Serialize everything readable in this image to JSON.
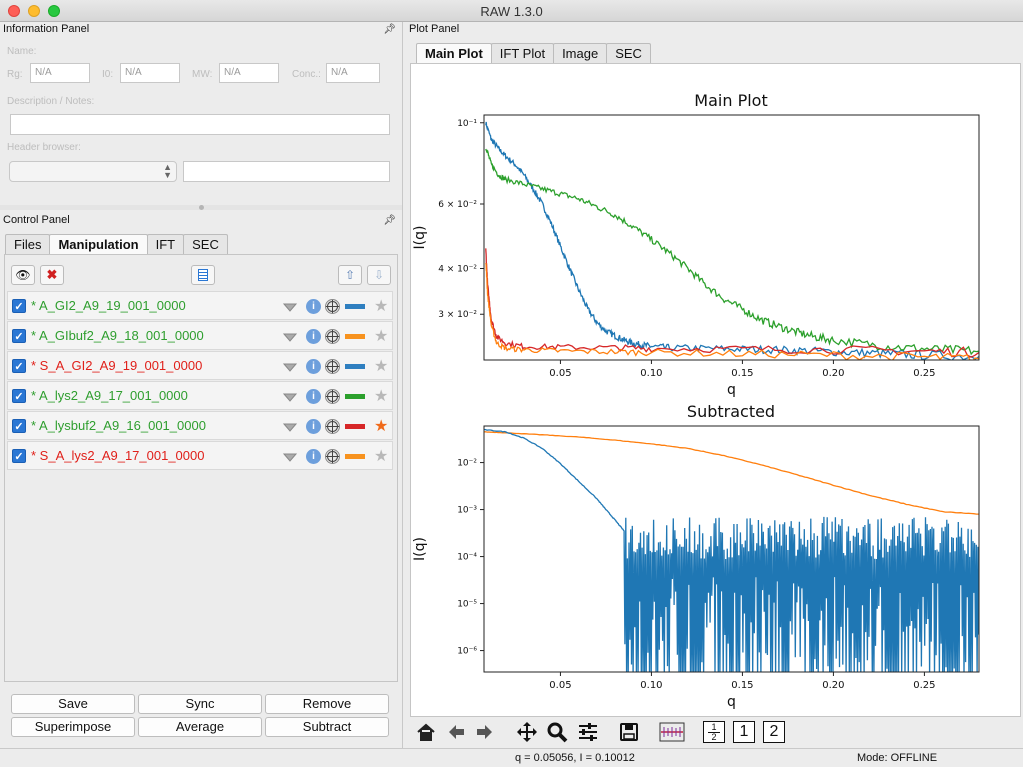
{
  "window": {
    "title": "RAW 1.3.0"
  },
  "info_panel": {
    "header": "Information Panel",
    "name_label": "Name:",
    "rg_label": "Rg:",
    "rg_value": "N/A",
    "i0_label": "I0:",
    "i0_value": "N/A",
    "mw_label": "MW:",
    "mw_value": "N/A",
    "conc_label": "Conc.:",
    "conc_value": "N/A",
    "notes_label": "Description / Notes:",
    "header_browser_label": "Header browser:"
  },
  "control_panel": {
    "header": "Control Panel",
    "tabs": [
      "Files",
      "Manipulation",
      "IFT",
      "SEC"
    ],
    "active_tab": "Manipulation",
    "items": [
      {
        "label": "* A_GI2_A9_19_001_0000",
        "text_color": "#2e9e2e",
        "swatch": "#2f7fc0",
        "starred": false
      },
      {
        "label": "* A_GIbuf2_A9_18_001_0000",
        "text_color": "#2e9e2e",
        "swatch": "#f7921e",
        "starred": false
      },
      {
        "label": "* S_A_GI2_A9_19_001_0000",
        "text_color": "#e0201a",
        "swatch": "#2f7fc0",
        "starred": false
      },
      {
        "label": "* A_lys2_A9_17_001_0000",
        "text_color": "#2e9e2e",
        "swatch": "#2ca02c",
        "starred": false
      },
      {
        "label": "* A_lysbuf2_A9_16_001_0000",
        "text_color": "#2e9e2e",
        "swatch": "#d62728",
        "starred": true
      },
      {
        "label": "* S_A_lys2_A9_17_001_0000",
        "text_color": "#e0201a",
        "swatch": "#f7921e",
        "starred": false
      }
    ],
    "buttons": {
      "save": "Save",
      "sync": "Sync",
      "remove": "Remove",
      "superimpose": "Superimpose",
      "average": "Average",
      "subtract": "Subtract"
    }
  },
  "plot_panel": {
    "header": "Plot Panel",
    "tabs": [
      "Main Plot",
      "IFT Plot",
      "Image",
      "SEC"
    ],
    "active_tab": "Main Plot",
    "zoom_buttons": [
      "1",
      "2"
    ],
    "zoom_split": {
      "num": "1",
      "den": "2"
    }
  },
  "status": {
    "readout": "q = 0.05056, I = 0.10012",
    "mode": "Mode: OFFLINE"
  },
  "chart_data": [
    {
      "type": "line",
      "title": "Main Plot",
      "xlabel": "q",
      "ylabel": "I(q)",
      "xlim": [
        0.008,
        0.28
      ],
      "ylim": [
        0.0225,
        0.105
      ],
      "yscale": "log",
      "xticks": [
        0.05,
        0.1,
        0.15,
        0.2,
        0.25
      ],
      "xtick_labels": [
        "0.05",
        "0.10",
        "0.15",
        "0.20",
        "0.25"
      ],
      "yticks": [
        0.03,
        0.04,
        0.06,
        0.1
      ],
      "ytick_labels": [
        "3 × 10⁻²",
        "4 × 10⁻²",
        "6 × 10⁻²",
        "10⁻¹"
      ],
      "series": [
        {
          "color": "#1f77b4",
          "x": [
            0.009,
            0.012,
            0.016,
            0.02,
            0.025,
            0.03,
            0.035,
            0.04,
            0.045,
            0.05,
            0.055,
            0.06,
            0.065,
            0.07,
            0.075,
            0.08,
            0.085,
            0.09,
            0.095,
            0.1,
            0.11,
            0.13,
            0.15,
            0.17,
            0.19,
            0.21,
            0.23,
            0.25,
            0.28
          ],
          "y": [
            0.1,
            0.09,
            0.085,
            0.081,
            0.077,
            0.072,
            0.066,
            0.06,
            0.053,
            0.046,
            0.04,
            0.035,
            0.031,
            0.0285,
            0.027,
            0.0262,
            0.0255,
            0.025,
            0.0247,
            0.0245,
            0.0243,
            0.0242,
            0.0241,
            0.024,
            0.0238,
            0.0236,
            0.0234,
            0.0232,
            0.023
          ]
        },
        {
          "color": "#2ca02c",
          "x": [
            0.009,
            0.012,
            0.016,
            0.02,
            0.03,
            0.04,
            0.05,
            0.06,
            0.07,
            0.08,
            0.09,
            0.1,
            0.11,
            0.12,
            0.13,
            0.14,
            0.15,
            0.16,
            0.17,
            0.18,
            0.19,
            0.2,
            0.22,
            0.24,
            0.26,
            0.28
          ],
          "y": [
            0.086,
            0.077,
            0.072,
            0.07,
            0.068,
            0.066,
            0.064,
            0.062,
            0.059,
            0.056,
            0.052,
            0.048,
            0.044,
            0.04,
            0.036,
            0.033,
            0.031,
            0.029,
            0.0278,
            0.0268,
            0.026,
            0.0255,
            0.0248,
            0.0243,
            0.024,
            0.0238
          ]
        },
        {
          "color": "#d62728",
          "x": [
            0.009,
            0.01,
            0.012,
            0.015,
            0.02,
            0.03,
            0.05,
            0.08,
            0.1,
            0.15,
            0.2,
            0.25,
            0.28
          ],
          "y": [
            0.045,
            0.036,
            0.029,
            0.026,
            0.025,
            0.0245,
            0.0244,
            0.0243,
            0.0242,
            0.0241,
            0.024,
            0.0238,
            0.0236
          ]
        },
        {
          "color": "#ff7f0e",
          "x": [
            0.009,
            0.01,
            0.012,
            0.015,
            0.02,
            0.03,
            0.05,
            0.08,
            0.1,
            0.15,
            0.2,
            0.25,
            0.28
          ],
          "y": [
            0.042,
            0.034,
            0.028,
            0.025,
            0.0242,
            0.024,
            0.0238,
            0.0237,
            0.0236,
            0.0234,
            0.0232,
            0.0229,
            0.0227
          ]
        }
      ]
    },
    {
      "type": "line",
      "title": "Subtracted",
      "xlabel": "q",
      "ylabel": "I(q)",
      "xlim": [
        0.008,
        0.28
      ],
      "ylim": [
        3.5e-07,
        0.06
      ],
      "yscale": "log",
      "xticks": [
        0.05,
        0.1,
        0.15,
        0.2,
        0.25
      ],
      "xtick_labels": [
        "0.05",
        "0.10",
        "0.15",
        "0.20",
        "0.25"
      ],
      "yticks": [
        1e-06,
        1e-05,
        0.0001,
        0.001,
        0.01
      ],
      "ytick_labels": [
        "10⁻⁶",
        "10⁻⁵",
        "10⁻⁴",
        "10⁻³",
        "10⁻²"
      ],
      "series": [
        {
          "color": "#ff7f0e",
          "x": [
            0.008,
            0.02,
            0.04,
            0.06,
            0.08,
            0.1,
            0.12,
            0.14,
            0.16,
            0.18,
            0.2,
            0.22,
            0.24,
            0.26,
            0.28
          ],
          "y": [
            0.045,
            0.043,
            0.039,
            0.035,
            0.03,
            0.025,
            0.02,
            0.014,
            0.009,
            0.0055,
            0.0033,
            0.002,
            0.0013,
            0.0009,
            0.0008
          ]
        },
        {
          "color": "#1f77b4",
          "x": [
            0.008,
            0.02,
            0.03,
            0.04,
            0.05,
            0.06,
            0.07,
            0.075,
            0.08,
            0.085
          ],
          "y": [
            0.05,
            0.045,
            0.033,
            0.02,
            0.0095,
            0.004,
            0.0017,
            0.001,
            0.0006,
            0.00035
          ],
          "noise_from_q": 0.085,
          "noise_ceiling": 0.00025,
          "noise_floor": 4e-07
        }
      ]
    }
  ]
}
